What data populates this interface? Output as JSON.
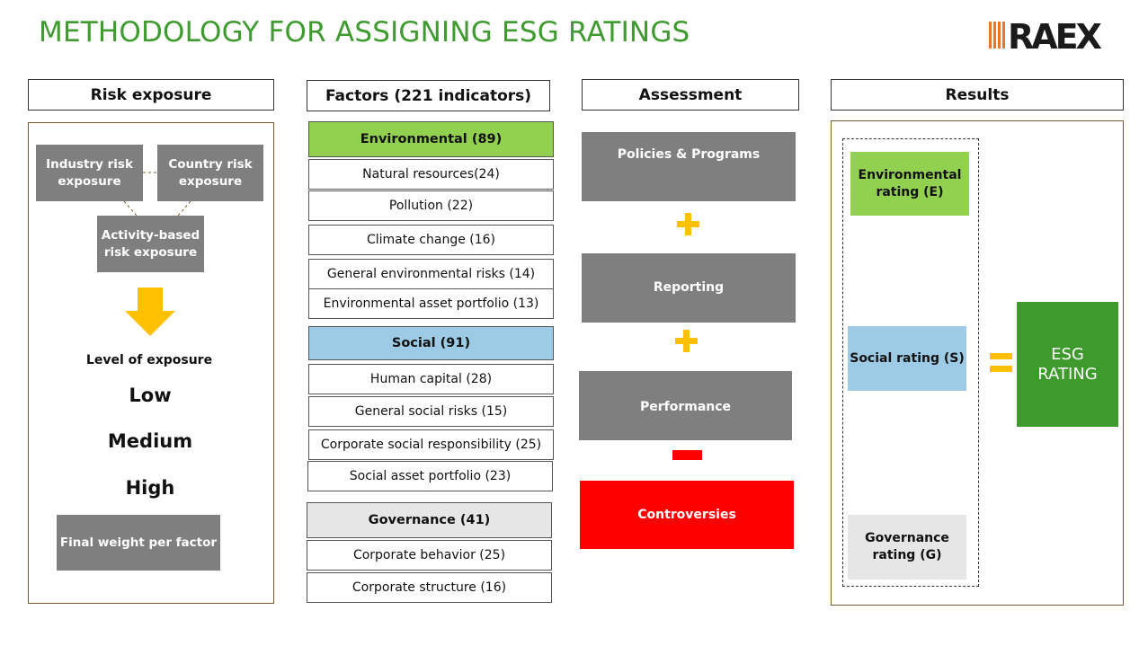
{
  "title": "METHODOLOGY FOR ASSIGNING ESG RATINGS",
  "logo": {
    "text": "RAEX",
    "color_dark": "#1a1a1a",
    "color_accent": "#e8772e"
  },
  "columns": {
    "risk": "Risk exposure",
    "factors": "Factors (221 indicators)",
    "assessment": "Assessment",
    "results": "Results"
  },
  "risk": {
    "industry": "Industry risk exposure",
    "country": "Country risk exposure",
    "activity": "Activity-based risk exposure",
    "level_label": "Level of exposure",
    "levels": [
      "Low",
      "Medium",
      "High"
    ],
    "final": "Final weight per factor"
  },
  "factors": {
    "environmental": {
      "label": "Environmental (89)",
      "items": [
        "Natural resources(24)",
        "Pollution (22)",
        "Climate change (16)",
        "General environmental risks (14)",
        "Environmental asset portfolio (13)"
      ]
    },
    "social": {
      "label": "Social (91)",
      "items": [
        "Human capital (28)",
        "General social risks (15)",
        "Corporate social responsibility (25)",
        "Social asset portfolio (23)"
      ]
    },
    "governance": {
      "label": "Governance (41)",
      "items": [
        "Corporate behavior (25)",
        "Corporate structure (16)"
      ]
    }
  },
  "assessment": {
    "policies": "Policies & Programs",
    "reporting": "Reporting",
    "performance": "Performance",
    "controversies": "Controversies"
  },
  "results": {
    "environmental": "Environmental rating (E)",
    "social": "Social rating (S)",
    "governance": "Governance rating (G)",
    "esg": "ESG RATING"
  },
  "colors": {
    "title": "#3f9a2f",
    "environmental": "#92d050",
    "social": "#9dcbe6",
    "governance": "#e6e6e6",
    "grey": "#7f7f7f",
    "controversies": "#ff0000",
    "plus": "#ffc000",
    "esg": "#3e9a2c"
  }
}
